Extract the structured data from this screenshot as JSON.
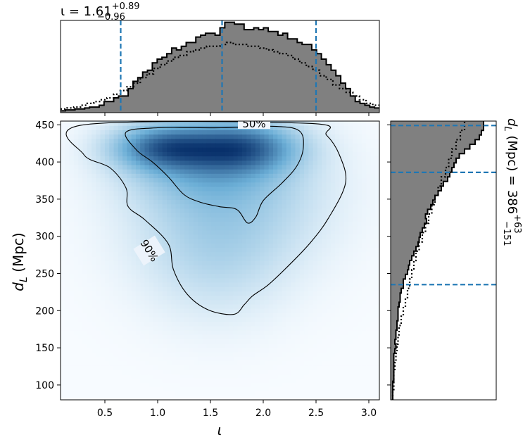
{
  "chart_data": {
    "type": "corner",
    "colors": {
      "hist_fill": "#808080",
      "quantile_line": "#1f77b4",
      "density": "#08519c",
      "contour": "#000000"
    },
    "top_title": {
      "symbol": "ι",
      "equals": " = ",
      "median": "1.61",
      "upper": "+0.89",
      "lower": "−0.96"
    },
    "right_title": {
      "symbol": "d",
      "subscript": "L",
      "unit": " (Mpc) = ",
      "median": "386",
      "upper": "+63",
      "lower": "−151"
    },
    "xlabel": "ι",
    "ylabel": {
      "symbol": "d",
      "subscript": "L",
      "unit": " (Mpc)"
    },
    "xlim": [
      0.08,
      3.1
    ],
    "ylim": [
      80,
      455
    ],
    "xticks": [
      "0.5",
      "1.0",
      "1.5",
      "2.0",
      "2.5",
      "3.0"
    ],
    "yticks": [
      "100",
      "150",
      "200",
      "250",
      "300",
      "350",
      "400",
      "450"
    ],
    "iota_quantiles": [
      0.65,
      1.61,
      2.5
    ],
    "dl_quantiles": [
      235,
      386,
      449
    ],
    "contour_labels": [
      "50%",
      "90%"
    ],
    "iota_bin_edges": [
      0.08,
      3.1
    ],
    "iota_posterior": [
      0.02,
      0.03,
      0.03,
      0.04,
      0.04,
      0.05,
      0.06,
      0.06,
      0.08,
      0.12,
      0.12,
      0.16,
      0.18,
      0.18,
      0.26,
      0.34,
      0.38,
      0.44,
      0.46,
      0.54,
      0.58,
      0.6,
      0.64,
      0.7,
      0.68,
      0.72,
      0.76,
      0.76,
      0.82,
      0.84,
      0.86,
      0.86,
      0.84,
      0.92,
      0.98,
      0.98,
      0.96,
      0.96,
      0.9,
      0.9,
      0.92,
      0.9,
      0.92,
      0.88,
      0.88,
      0.84,
      0.86,
      0.8,
      0.8,
      0.76,
      0.74,
      0.74,
      0.68,
      0.64,
      0.58,
      0.52,
      0.46,
      0.4,
      0.32,
      0.26,
      0.18,
      0.12,
      0.1,
      0.08,
      0.06,
      0.05
    ],
    "iota_prior": [
      0.04,
      0.05,
      0.06,
      0.08,
      0.1,
      0.12,
      0.14,
      0.16,
      0.2,
      0.24,
      0.28,
      0.32,
      0.38,
      0.42,
      0.48,
      0.52,
      0.56,
      0.6,
      0.62,
      0.66,
      0.68,
      0.7,
      0.72,
      0.72,
      0.74,
      0.76,
      0.74,
      0.74,
      0.72,
      0.72,
      0.7,
      0.68,
      0.66,
      0.64,
      0.62,
      0.58,
      0.54,
      0.5,
      0.46,
      0.4,
      0.36,
      0.3,
      0.26,
      0.22,
      0.18,
      0.14,
      0.1,
      0.08
    ],
    "dl_bin_edges": [
      80,
      455
    ],
    "dl_posterior": [
      0.02,
      0.02,
      0.02,
      0.02,
      0.03,
      0.03,
      0.03,
      0.03,
      0.03,
      0.03,
      0.04,
      0.05,
      0.04,
      0.05,
      0.05,
      0.06,
      0.06,
      0.07,
      0.07,
      0.07,
      0.08,
      0.09,
      0.09,
      0.1,
      0.12,
      0.12,
      0.14,
      0.16,
      0.17,
      0.18,
      0.2,
      0.22,
      0.24,
      0.26,
      0.27,
      0.28,
      0.3,
      0.32,
      0.34,
      0.33,
      0.35,
      0.38,
      0.4,
      0.42,
      0.45,
      0.48,
      0.5,
      0.54,
      0.56,
      0.58,
      0.6,
      0.62,
      0.65,
      0.7,
      0.75,
      0.8,
      0.84,
      0.86,
      0.88,
      0.88
    ],
    "dl_prior": [
      0.02,
      0.03,
      0.03,
      0.04,
      0.05,
      0.06,
      0.07,
      0.08,
      0.1,
      0.12,
      0.14,
      0.16,
      0.18,
      0.2,
      0.22,
      0.24,
      0.27,
      0.3,
      0.33,
      0.36,
      0.39,
      0.42,
      0.45,
      0.48,
      0.52,
      0.55,
      0.58,
      0.62,
      0.66,
      0.7
    ],
    "density_blobs": [
      {
        "iota": 1.05,
        "dl": 420,
        "s_iota": 0.32,
        "s_dl": 20,
        "w": 1.0
      },
      {
        "iota": 1.8,
        "dl": 420,
        "s_iota": 0.35,
        "s_dl": 22,
        "w": 1.0
      },
      {
        "iota": 1.45,
        "dl": 400,
        "s_iota": 0.5,
        "s_dl": 38,
        "w": 0.55
      },
      {
        "iota": 1.55,
        "dl": 330,
        "s_iota": 0.55,
        "s_dl": 60,
        "w": 0.3
      },
      {
        "iota": 1.55,
        "dl": 260,
        "s_iota": 0.45,
        "s_dl": 55,
        "w": 0.16
      },
      {
        "iota": 2.1,
        "dl": 360,
        "s_iota": 0.5,
        "s_dl": 60,
        "w": 0.12
      }
    ],
    "contour_90": [
      [
        0.3,
        450
      ],
      [
        0.3,
        410
      ],
      [
        0.55,
        392
      ],
      [
        0.7,
        365
      ],
      [
        0.72,
        340
      ],
      [
        0.88,
        322
      ],
      [
        1.1,
        290
      ],
      [
        1.15,
        255
      ],
      [
        1.28,
        222
      ],
      [
        1.48,
        201
      ],
      [
        1.72,
        195
      ],
      [
        1.82,
        208
      ],
      [
        1.9,
        220
      ],
      [
        2.05,
        235
      ],
      [
        2.25,
        262
      ],
      [
        2.45,
        292
      ],
      [
        2.62,
        325
      ],
      [
        2.78,
        372
      ],
      [
        2.72,
        410
      ],
      [
        2.6,
        436
      ],
      [
        2.42,
        452
      ]
    ],
    "contour_50": [
      [
        0.7,
        440
      ],
      [
        0.8,
        416
      ],
      [
        0.95,
        400
      ],
      [
        1.1,
        380
      ],
      [
        1.25,
        356
      ],
      [
        1.4,
        346
      ],
      [
        1.58,
        340
      ],
      [
        1.75,
        336
      ],
      [
        1.85,
        318
      ],
      [
        1.93,
        326
      ],
      [
        2.0,
        348
      ],
      [
        2.18,
        372
      ],
      [
        2.32,
        395
      ],
      [
        2.38,
        420
      ],
      [
        2.34,
        442
      ],
      [
        2.1,
        448
      ],
      [
        1.6,
        446
      ],
      [
        1.0,
        446
      ]
    ]
  }
}
